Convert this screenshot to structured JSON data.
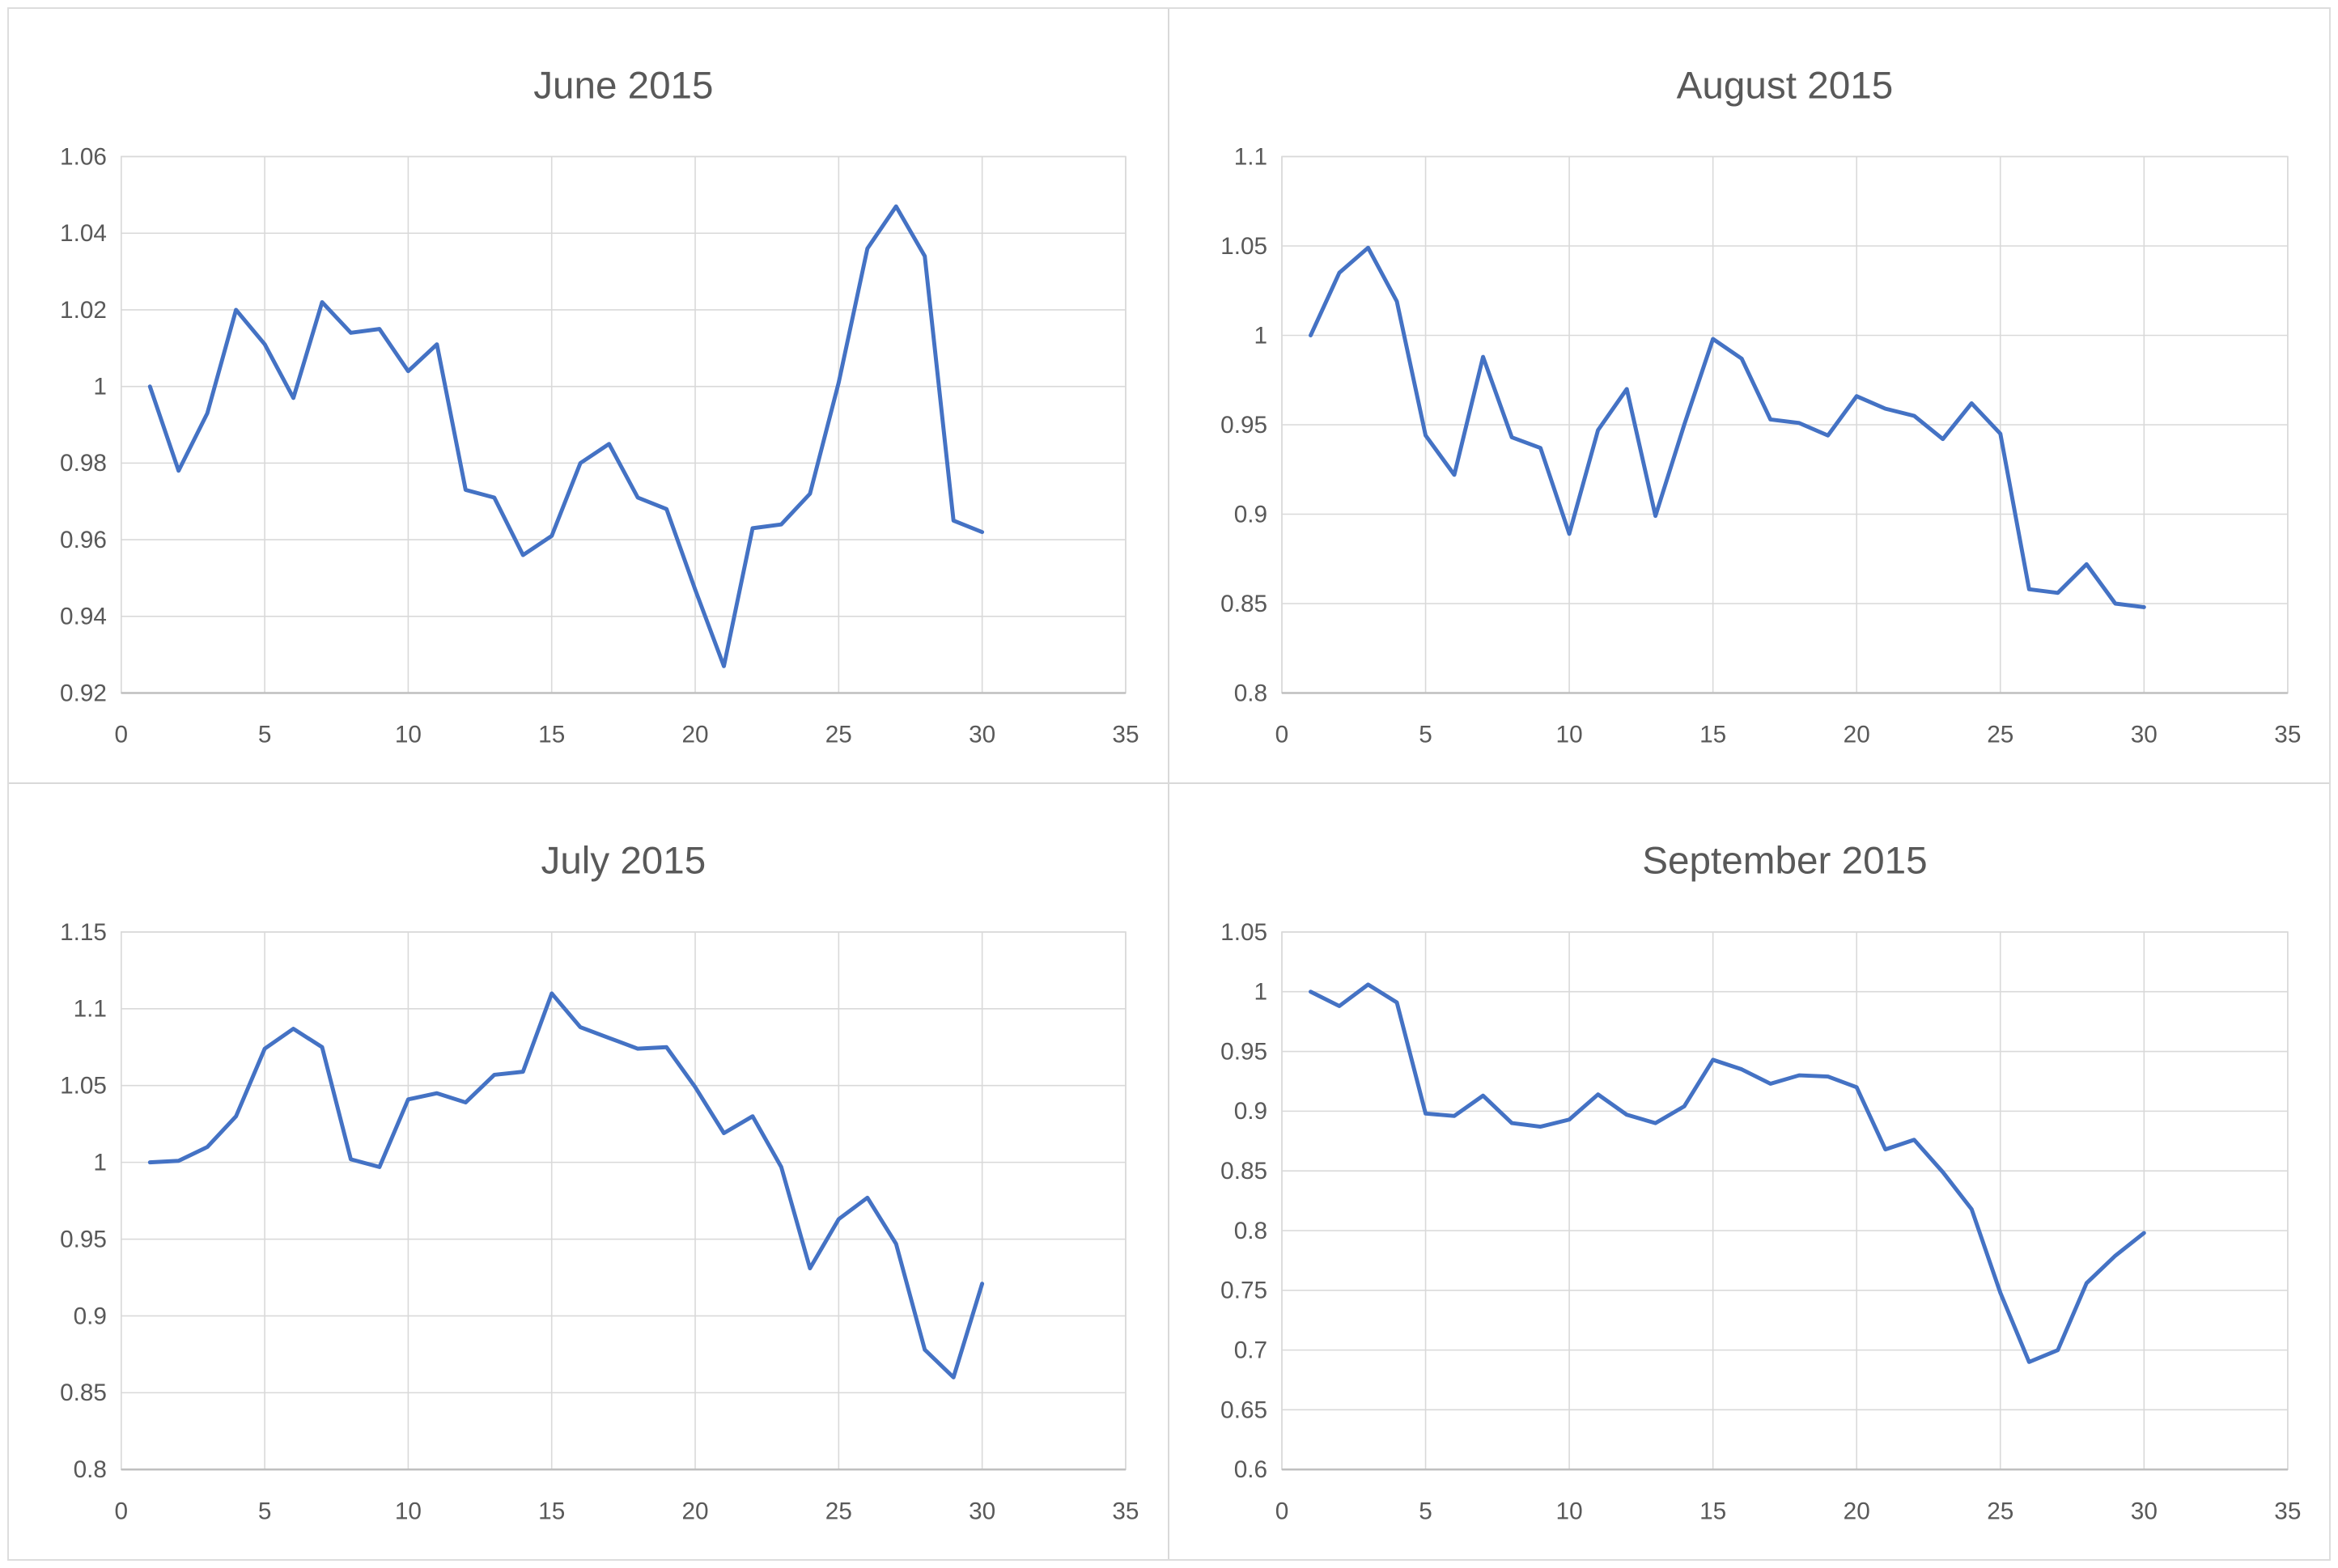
{
  "styles": {
    "line_color": "#4472C4",
    "grid_color": "#D9D9D9",
    "axis_line_color": "#BFBFBF",
    "plot_border_color": "#D9D9D9",
    "title_color": "#595959",
    "tick_label_color": "#595959",
    "background": "#FFFFFF",
    "panel_border_color": "#D9D9D9"
  },
  "chart_data": [
    {
      "type": "line",
      "title": "June 2015",
      "grid_position": "top-left",
      "legend": "none",
      "grid": true,
      "xlim": [
        0,
        35
      ],
      "ylim": [
        0.92,
        1.06
      ],
      "x_ticks": [
        "0",
        "5",
        "10",
        "15",
        "20",
        "25",
        "30",
        "35"
      ],
      "x_tick_values": [
        0,
        5,
        10,
        15,
        20,
        25,
        30,
        35
      ],
      "y_ticks": [
        "0.92",
        "0.94",
        "0.96",
        "0.98",
        "1",
        "1.02",
        "1.04",
        "1.06"
      ],
      "y_tick_values": [
        0.92,
        0.94,
        0.96,
        0.98,
        1.0,
        1.02,
        1.04,
        1.06
      ],
      "x": [
        1,
        2,
        3,
        4,
        5,
        6,
        7,
        8,
        9,
        10,
        11,
        12,
        13,
        14,
        15,
        16,
        17,
        18,
        19,
        20,
        21,
        22,
        23,
        24,
        25,
        26,
        27,
        28,
        29,
        30
      ],
      "values": [
        1.0,
        0.978,
        0.993,
        1.02,
        1.011,
        0.997,
        1.022,
        1.014,
        1.015,
        1.004,
        1.011,
        0.973,
        0.971,
        0.956,
        0.961,
        0.98,
        0.985,
        0.971,
        0.968,
        0.947,
        0.927,
        0.963,
        0.964,
        0.972,
        1.001,
        1.036,
        1.047,
        1.034,
        0.965,
        0.962
      ]
    },
    {
      "type": "line",
      "title": "August 2015",
      "grid_position": "top-right",
      "legend": "none",
      "grid": true,
      "xlim": [
        0,
        35
      ],
      "ylim": [
        0.8,
        1.1
      ],
      "x_ticks": [
        "0",
        "5",
        "10",
        "15",
        "20",
        "25",
        "30",
        "35"
      ],
      "x_tick_values": [
        0,
        5,
        10,
        15,
        20,
        25,
        30,
        35
      ],
      "y_ticks": [
        "0.8",
        "0.85",
        "0.9",
        "0.95",
        "1",
        "1.05",
        "1.1"
      ],
      "y_tick_values": [
        0.8,
        0.85,
        0.9,
        0.95,
        1.0,
        1.05,
        1.1
      ],
      "x": [
        1,
        2,
        3,
        4,
        5,
        6,
        7,
        8,
        9,
        10,
        11,
        12,
        13,
        14,
        15,
        16,
        17,
        18,
        19,
        20,
        21,
        22,
        23,
        24,
        25,
        26,
        27,
        28,
        29,
        30
      ],
      "values": [
        1.0,
        1.035,
        1.049,
        1.019,
        0.944,
        0.922,
        0.988,
        0.943,
        0.937,
        0.889,
        0.947,
        0.97,
        0.899,
        0.95,
        0.998,
        0.987,
        0.953,
        0.951,
        0.944,
        0.966,
        0.959,
        0.955,
        0.942,
        0.962,
        0.945,
        0.858,
        0.856,
        0.872,
        0.85,
        0.848
      ]
    },
    {
      "type": "line",
      "title": "July 2015",
      "grid_position": "bottom-left",
      "legend": "none",
      "grid": true,
      "xlim": [
        0,
        35
      ],
      "ylim": [
        0.8,
        1.15
      ],
      "x_ticks": [
        "0",
        "5",
        "10",
        "15",
        "20",
        "25",
        "30",
        "35"
      ],
      "x_tick_values": [
        0,
        5,
        10,
        15,
        20,
        25,
        30,
        35
      ],
      "y_ticks": [
        "0.8",
        "0.85",
        "0.9",
        "0.95",
        "1",
        "1.05",
        "1.1",
        "1.15"
      ],
      "y_tick_values": [
        0.8,
        0.85,
        0.9,
        0.95,
        1.0,
        1.05,
        1.1,
        1.15
      ],
      "x": [
        1,
        2,
        3,
        4,
        5,
        6,
        7,
        8,
        9,
        10,
        11,
        12,
        13,
        14,
        15,
        16,
        17,
        18,
        19,
        20,
        21,
        22,
        23,
        24,
        25,
        26,
        27,
        28,
        29,
        30
      ],
      "values": [
        1.0,
        1.001,
        1.01,
        1.03,
        1.074,
        1.087,
        1.075,
        1.002,
        0.997,
        1.041,
        1.045,
        1.039,
        1.057,
        1.059,
        1.11,
        1.088,
        1.081,
        1.074,
        1.075,
        1.049,
        1.019,
        1.03,
        0.997,
        0.931,
        0.963,
        0.977,
        0.947,
        0.878,
        0.86,
        0.921
      ]
    },
    {
      "type": "line",
      "title": "September 2015",
      "grid_position": "bottom-right",
      "legend": "none",
      "grid": true,
      "xlim": [
        0,
        35
      ],
      "ylim": [
        0.6,
        1.05
      ],
      "x_ticks": [
        "0",
        "5",
        "10",
        "15",
        "20",
        "25",
        "30",
        "35"
      ],
      "x_tick_values": [
        0,
        5,
        10,
        15,
        20,
        25,
        30,
        35
      ],
      "y_ticks": [
        "0.6",
        "0.65",
        "0.7",
        "0.75",
        "0.8",
        "0.85",
        "0.9",
        "0.95",
        "1",
        "1.05"
      ],
      "y_tick_values": [
        0.6,
        0.65,
        0.7,
        0.75,
        0.8,
        0.85,
        0.9,
        0.95,
        1.0,
        1.05
      ],
      "x": [
        1,
        2,
        3,
        4,
        5,
        6,
        7,
        8,
        9,
        10,
        11,
        12,
        13,
        14,
        15,
        16,
        17,
        18,
        19,
        20,
        21,
        22,
        23,
        24,
        25,
        26,
        27,
        28,
        29,
        30
      ],
      "values": [
        1.0,
        0.988,
        1.006,
        0.991,
        0.898,
        0.896,
        0.913,
        0.89,
        0.887,
        0.893,
        0.914,
        0.897,
        0.89,
        0.904,
        0.943,
        0.935,
        0.923,
        0.93,
        0.929,
        0.92,
        0.868,
        0.876,
        0.849,
        0.818,
        0.748,
        0.69,
        0.7,
        0.756,
        0.779,
        0.798
      ]
    }
  ]
}
